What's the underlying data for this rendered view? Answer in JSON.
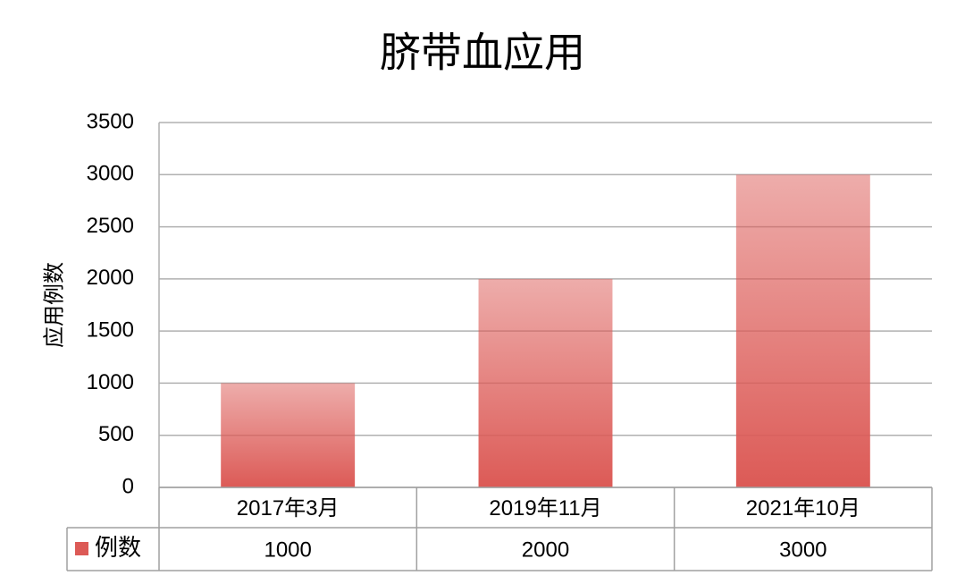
{
  "chart_data": {
    "type": "bar",
    "title": "脐带血应用",
    "y_label": "应用例数",
    "categories": [
      "2017年3月",
      "2019年11月",
      "2021年10月"
    ],
    "series": [
      {
        "name": "例数",
        "color": "#dc5a56",
        "values": [
          1000,
          2000,
          3000
        ]
      }
    ],
    "ylim": [
      0,
      3500
    ],
    "yticks": [
      0,
      500,
      1000,
      1500,
      2000,
      2500,
      3000,
      3500
    ],
    "grid": true,
    "data_table": true
  }
}
